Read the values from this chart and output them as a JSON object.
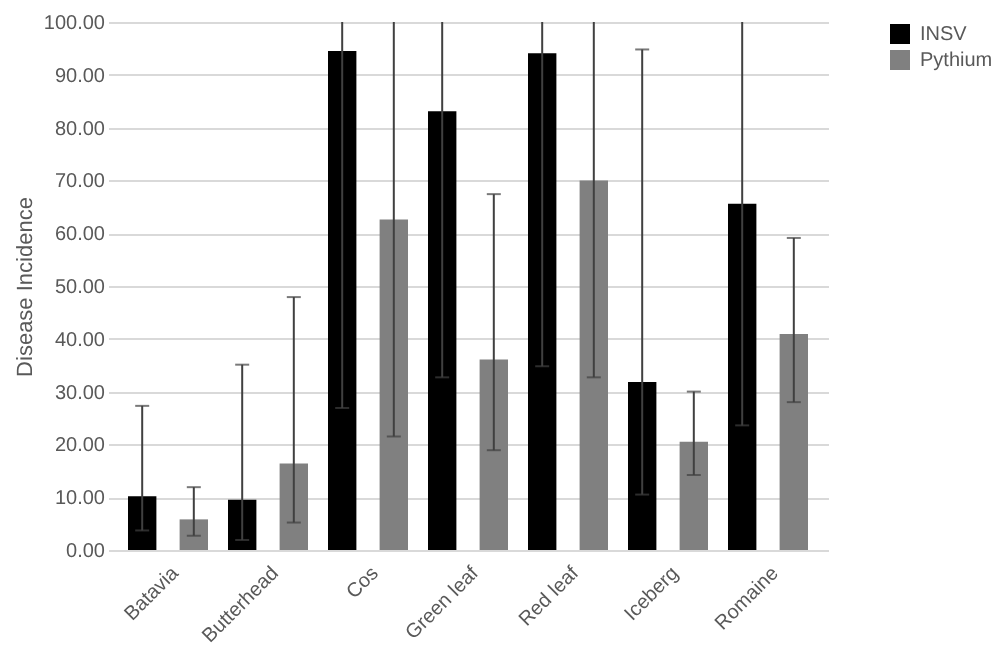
{
  "chart_data": {
    "type": "bar",
    "ylabel": "Disease Incidence",
    "categories": [
      "Batavia",
      "Butterhead",
      "Cos",
      "Green leaf",
      "Red leaf",
      "Iceberg",
      "Romaine"
    ],
    "series": [
      {
        "name": "INSV",
        "color": "#000000",
        "values": [
          10.2,
          9.5,
          94.5,
          83.1,
          94.1,
          31.8,
          65.6
        ],
        "errors": [
          [
            3.7,
            27.3
          ],
          [
            1.9,
            35.1
          ],
          [
            26.9,
            100
          ],
          [
            32.7,
            100
          ],
          [
            34.8,
            100
          ],
          [
            10.5,
            94.8
          ],
          [
            23.6,
            100
          ]
        ]
      },
      {
        "name": "Pythium",
        "color": "#808080",
        "values": [
          5.8,
          16.4,
          62.6,
          36.1,
          70.0,
          20.5,
          40.9
        ],
        "errors": [
          [
            2.7,
            11.9
          ],
          [
            5.2,
            47.9
          ],
          [
            21.5,
            100
          ],
          [
            18.9,
            67.4
          ],
          [
            32.7,
            100
          ],
          [
            14.2,
            30.0
          ],
          [
            28.0,
            59.1
          ]
        ]
      }
    ],
    "ylim": [
      0,
      100
    ],
    "yticks": [
      {
        "value": 0,
        "label": "0.00"
      },
      {
        "value": 10,
        "label": "10.00"
      },
      {
        "value": 20,
        "label": "20.00"
      },
      {
        "value": 30,
        "label": "30.00"
      },
      {
        "value": 40,
        "label": "40.00"
      },
      {
        "value": 50,
        "label": "50.00"
      },
      {
        "value": 60,
        "label": "60.00"
      },
      {
        "value": 70,
        "label": "70.00"
      },
      {
        "value": 80,
        "label": "80.00"
      },
      {
        "value": 90,
        "label": "90.00"
      },
      {
        "value": 100,
        "label": "100.00"
      }
    ],
    "grid": "y",
    "legend": "right"
  }
}
